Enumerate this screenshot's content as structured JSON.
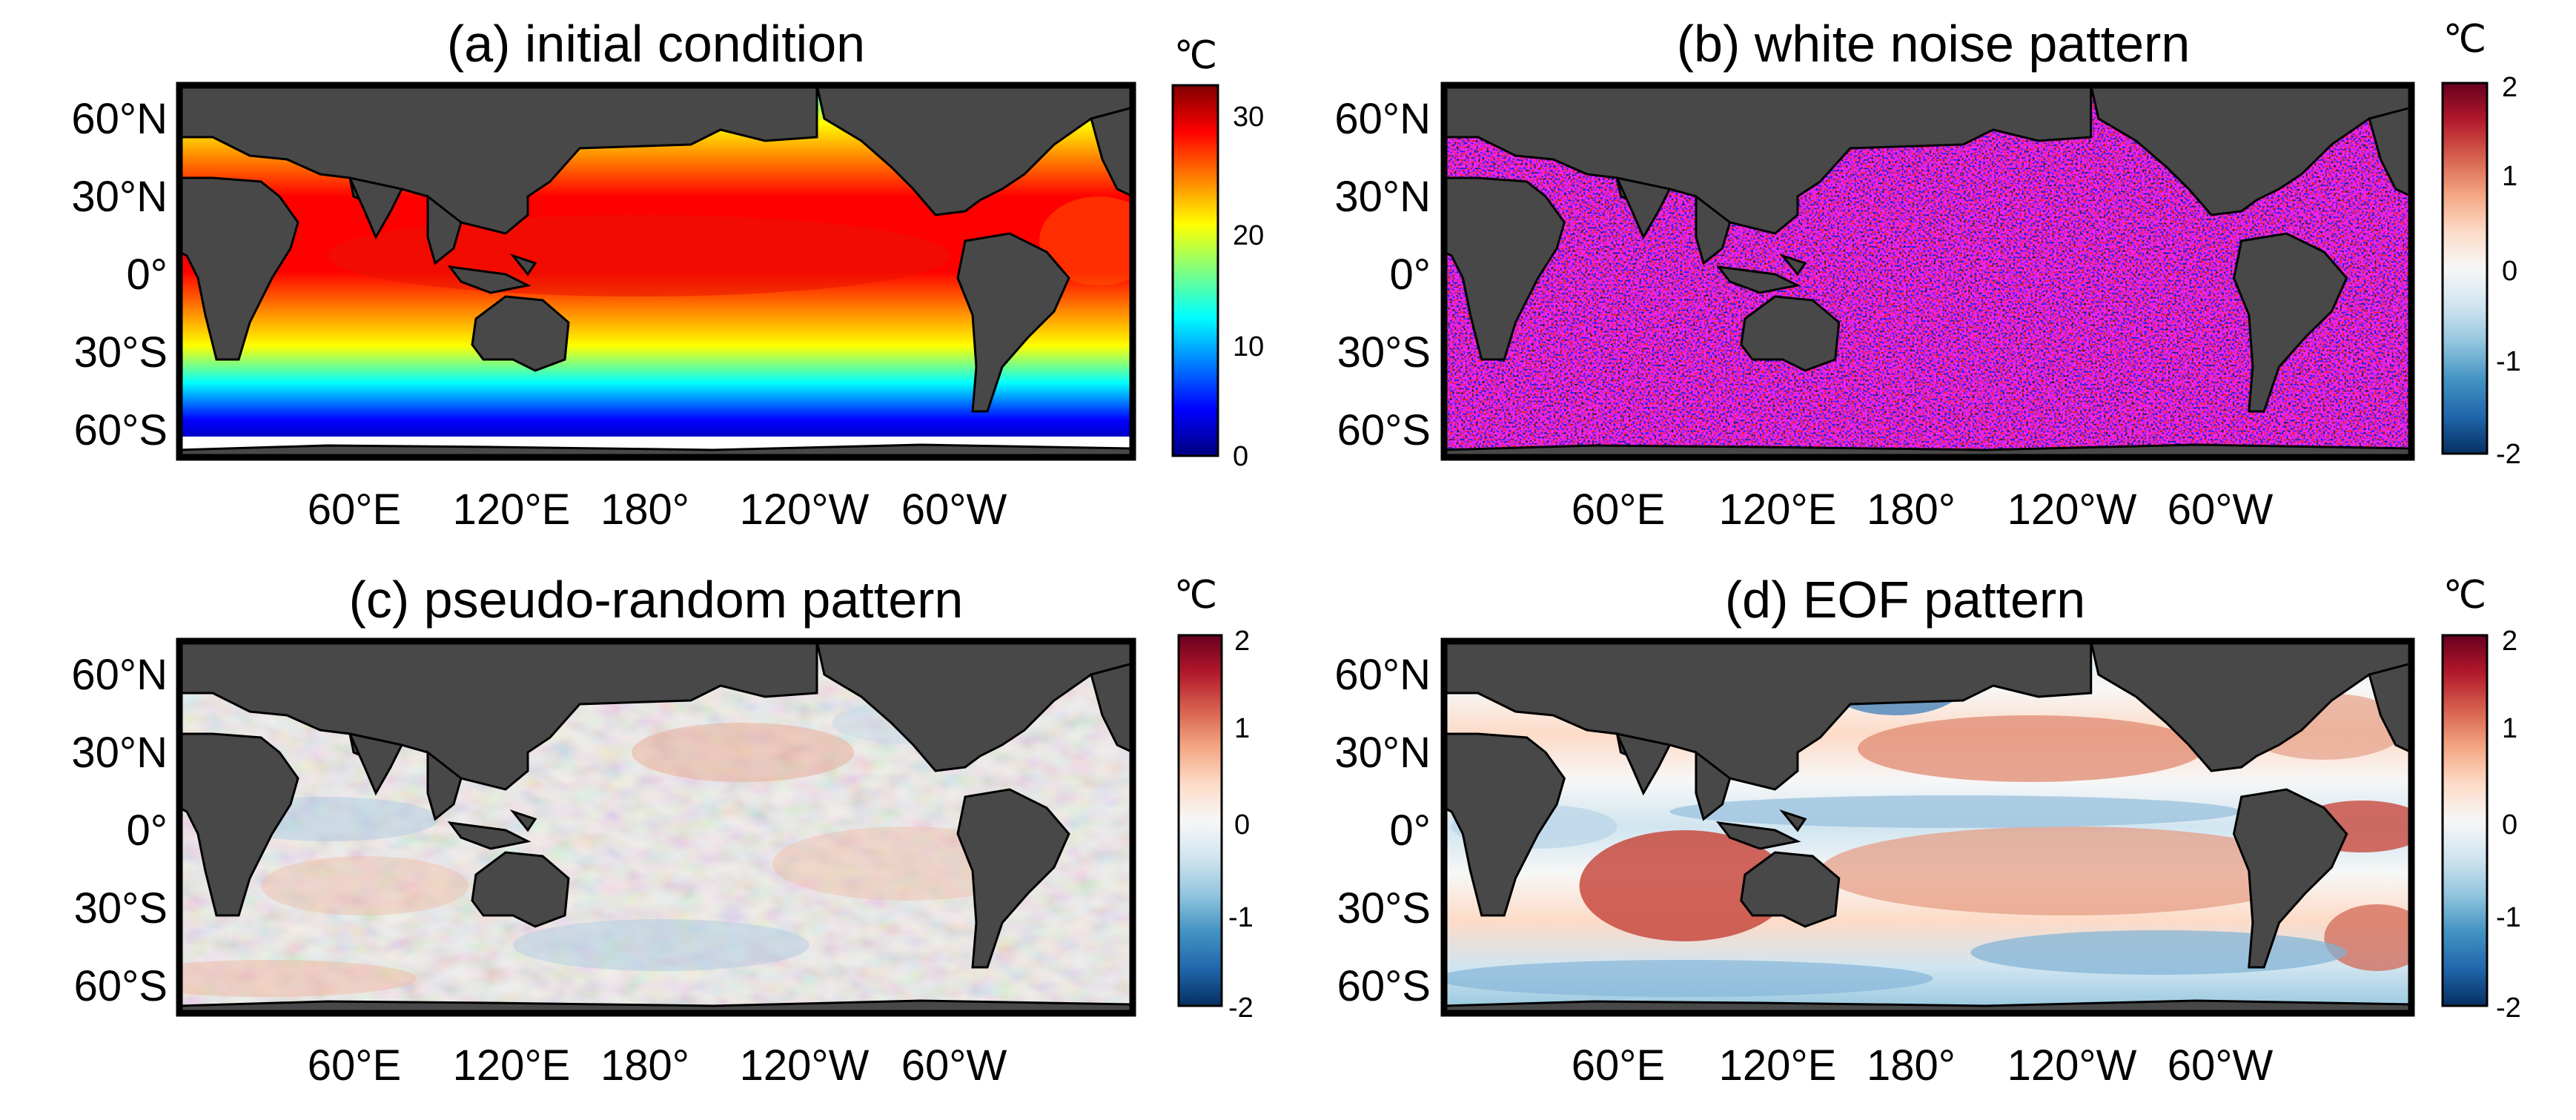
{
  "unit_symbol": "℃",
  "lat_labels": [
    "60°N",
    "30°N",
    "0°",
    "30°S",
    "60°S"
  ],
  "lon_labels": [
    "60°E",
    "120°E",
    "180°",
    "120°W",
    "60°W"
  ],
  "colors": {
    "land": "#484848",
    "frame": "#000000",
    "jet": [
      "#00007f",
      "#0000ff",
      "#007fff",
      "#00ffff",
      "#7fff7f",
      "#ffff00",
      "#ff7f00",
      "#ff0000",
      "#7f0000"
    ],
    "diverging": [
      "#053061",
      "#2166ac",
      "#4393c3",
      "#92c5de",
      "#d1e5f0",
      "#f7f7f7",
      "#fddbc7",
      "#f4a582",
      "#d6604d",
      "#b2182b",
      "#67001f"
    ]
  },
  "panels": [
    {
      "title": "(a) initial condition",
      "colormap": "jet",
      "colorbar_ticks": [
        "30",
        "20",
        "10",
        "0"
      ],
      "colorbar_range": [
        0,
        33
      ]
    },
    {
      "title": "(b) white noise pattern",
      "colormap": "diverging",
      "colorbar_ticks": [
        "2",
        "1",
        "0",
        "-1",
        "-2"
      ],
      "colorbar_range": [
        -2,
        2
      ]
    },
    {
      "title": "(c) pseudo-random pattern",
      "colormap": "diverging",
      "colorbar_ticks": [
        "2",
        "1",
        "0",
        "-1",
        "-2"
      ],
      "colorbar_range": [
        -2,
        2
      ]
    },
    {
      "title": "(d) EOF pattern",
      "colormap": "diverging",
      "colorbar_ticks": [
        "2",
        "1",
        "0",
        "-1",
        "-2"
      ],
      "colorbar_range": [
        -2,
        2
      ]
    }
  ]
}
